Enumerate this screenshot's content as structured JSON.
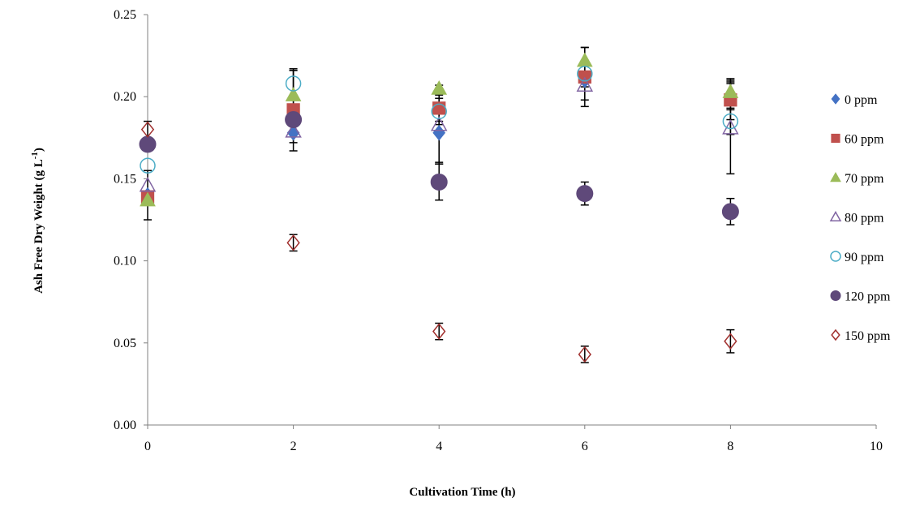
{
  "chart_data": {
    "type": "scatter",
    "title": "",
    "xlabel": "Cultivation Time (h)",
    "ylabel": "Ash Free Dry Weight (g L",
    "ylabel_superscript": "-1",
    "ylabel_suffix": ")",
    "xlim": [
      0,
      10
    ],
    "ylim": [
      0,
      0.25
    ],
    "x_ticks": [
      "0",
      "2",
      "4",
      "6",
      "8",
      "10"
    ],
    "y_ticks": [
      "0.00",
      "0.05",
      "0.10",
      "0.15",
      "0.20",
      "0.25"
    ],
    "grid": false,
    "legend_position": "right",
    "series": [
      {
        "name": "0 ppm",
        "marker": "diamond-filled",
        "color": "#4472C4",
        "x": [
          0,
          2,
          4,
          6,
          8
        ],
        "y": [
          0.14,
          0.178,
          0.178,
          0.21,
          0.2
        ],
        "err": [
          0.015,
          0.006,
          0.018,
          0.012,
          0.008
        ]
      },
      {
        "name": "60 ppm",
        "marker": "square-filled",
        "color": "#C0504D",
        "x": [
          0,
          2,
          4,
          6,
          8
        ],
        "y": [
          0.139,
          0.192,
          0.193,
          0.212,
          0.198
        ],
        "err": [
          0,
          0.025,
          0.008,
          0.018,
          0.012
        ]
      },
      {
        "name": "70 ppm",
        "marker": "triangle-filled",
        "color": "#9BBB59",
        "x": [
          0,
          2,
          4,
          6,
          8
        ],
        "y": [
          0.137,
          0.201,
          0.205,
          0.222,
          0.203
        ],
        "err": [
          0,
          0.015,
          0,
          0.008,
          0.008
        ]
      },
      {
        "name": "80 ppm",
        "marker": "triangle-open",
        "color": "#8064A2",
        "x": [
          0,
          2,
          4,
          6,
          8
        ],
        "y": [
          0.146,
          0.179,
          0.183,
          0.207,
          0.181
        ],
        "err": [
          0,
          0,
          0.024,
          0,
          0.028
        ]
      },
      {
        "name": "90 ppm",
        "marker": "circle-open",
        "color": "#4BACC6",
        "x": [
          0,
          2,
          4,
          6,
          8
        ],
        "y": [
          0.158,
          0.208,
          0.191,
          0.214,
          0.185
        ],
        "err": [
          0,
          0.008,
          0.008,
          0.008,
          0.008
        ]
      },
      {
        "name": "120 ppm",
        "marker": "circle-filled",
        "color": "#5F497A",
        "x": [
          0,
          2,
          4,
          6,
          8
        ],
        "y": [
          0.171,
          0.186,
          0.148,
          0.141,
          0.13
        ],
        "err": [
          0,
          0,
          0.011,
          0.007,
          0.008
        ]
      },
      {
        "name": "150 ppm",
        "marker": "diamond-open",
        "color": "#A1302E",
        "x": [
          0,
          2,
          4,
          6,
          8
        ],
        "y": [
          0.18,
          0.111,
          0.057,
          0.043,
          0.051
        ],
        "err": [
          0.005,
          0.005,
          0.005,
          0.005,
          0.007
        ]
      }
    ]
  }
}
